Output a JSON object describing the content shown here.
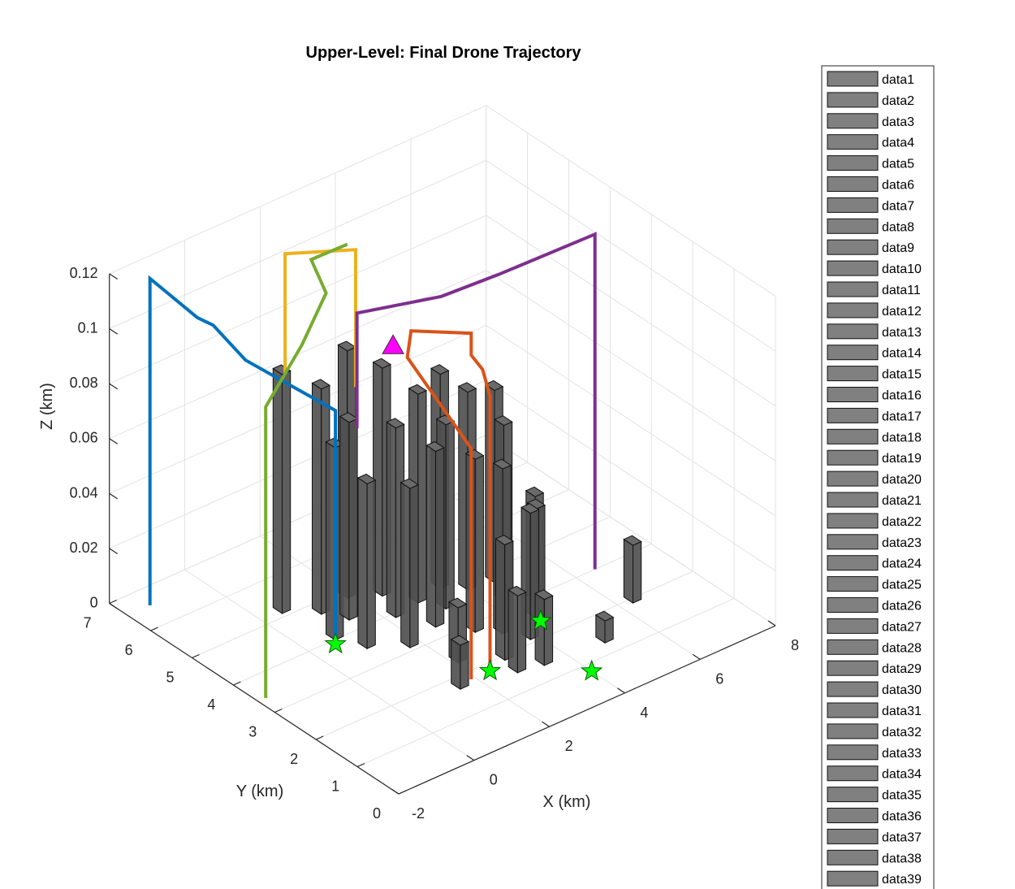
{
  "chart_data": {
    "type": "3d-bar-trajectory",
    "title": "Upper-Level: Final Drone Trajectory",
    "xlabel": "X (km)",
    "ylabel": "Y (km)",
    "zlabel": "Z (km)",
    "xlim": [
      -2,
      8
    ],
    "ylim": [
      0,
      7
    ],
    "zlim": [
      0,
      0.12
    ],
    "x_ticks": [
      "-2",
      "0",
      "2",
      "4",
      "6",
      "8"
    ],
    "y_ticks": [
      "0",
      "1",
      "2",
      "3",
      "4",
      "5",
      "6",
      "7"
    ],
    "z_ticks": [
      "0",
      "0.02",
      "0.04",
      "0.06",
      "0.08",
      "0.1",
      "0.12"
    ],
    "grid": true,
    "legend_placement": "right",
    "building_color": "#505050",
    "buildings": [
      {
        "x": 0.6,
        "y": 5.2,
        "h": 0.087
      },
      {
        "x": 1.2,
        "y": 4.8,
        "h": 0.082
      },
      {
        "x": 0.8,
        "y": 4.1,
        "h": 0.07
      },
      {
        "x": 1.5,
        "y": 4.4,
        "h": 0.072
      },
      {
        "x": 2.0,
        "y": 4.9,
        "h": 0.09
      },
      {
        "x": 1.1,
        "y": 3.6,
        "h": 0.06
      },
      {
        "x": 2.3,
        "y": 4.0,
        "h": 0.069
      },
      {
        "x": 2.6,
        "y": 4.6,
        "h": 0.083
      },
      {
        "x": 1.8,
        "y": 3.2,
        "h": 0.058
      },
      {
        "x": 3.0,
        "y": 4.1,
        "h": 0.076
      },
      {
        "x": 2.7,
        "y": 3.4,
        "h": 0.064
      },
      {
        "x": 3.3,
        "y": 3.7,
        "h": 0.067
      },
      {
        "x": 3.7,
        "y": 4.2,
        "h": 0.078
      },
      {
        "x": 3.2,
        "y": 2.9,
        "h": 0.063
      },
      {
        "x": 4.1,
        "y": 3.9,
        "h": 0.072
      },
      {
        "x": 3.6,
        "y": 2.6,
        "h": 0.06
      },
      {
        "x": 4.4,
        "y": 3.3,
        "h": 0.064
      },
      {
        "x": 4.7,
        "y": 3.8,
        "h": 0.07
      },
      {
        "x": 2.2,
        "y": 2.4,
        "h": 0.02
      },
      {
        "x": 3.0,
        "y": 2.0,
        "h": 0.042
      },
      {
        "x": 3.9,
        "y": 2.2,
        "h": 0.046
      },
      {
        "x": 4.5,
        "y": 2.6,
        "h": 0.04
      },
      {
        "x": 4.9,
        "y": 3.0,
        "h": 0.038
      },
      {
        "x": 5.0,
        "y": 1.4,
        "h": 0.008
      },
      {
        "x": 6.4,
        "y": 2.0,
        "h": 0.021
      },
      {
        "x": 1.6,
        "y": 1.8,
        "h": 0.016
      },
      {
        "x": 2.9,
        "y": 1.6,
        "h": 0.028
      },
      {
        "x": 3.5,
        "y": 1.5,
        "h": 0.024
      }
    ],
    "trajectories": [
      {
        "color": "#0072BD",
        "points": [
          [
            0.6,
            3.9,
            0
          ],
          [
            0.6,
            3.9,
            0.085
          ],
          [
            -0.8,
            4.8,
            0.103
          ],
          [
            -1.0,
            5.4,
            0.111
          ],
          [
            -1.2,
            5.6,
            0.113
          ],
          [
            -1.8,
            6.2,
            0.125
          ],
          [
            -1.8,
            6.2,
            0.006
          ]
        ]
      },
      {
        "color": "#EDB120",
        "points": [
          [
            3.0,
            5.6,
            0.062
          ],
          [
            3.0,
            5.6,
            0.112
          ],
          [
            0.8,
            5.3,
            0.127
          ],
          [
            0.8,
            5.3,
            0.083
          ]
        ]
      },
      {
        "color": "#77AC30",
        "points": [
          [
            3.0,
            5.8,
            0.112
          ],
          [
            1.6,
            5.4,
            0.119
          ],
          [
            0.9,
            4.4,
            0.121
          ],
          [
            -0.4,
            3.8,
            0.116
          ],
          [
            -1.8,
            3.4,
            0.106
          ],
          [
            -1.8,
            3.4,
            0.0
          ]
        ]
      },
      {
        "color": "#D95319",
        "points": [
          [
            2.4,
            1.8,
            0
          ],
          [
            2.4,
            1.8,
            0.1
          ],
          [
            2.2,
            1.8,
            0.111
          ],
          [
            1.9,
            1.8,
            0.118
          ],
          [
            1.9,
            1.8,
            0.126
          ],
          [
            1.4,
            2.8,
            0.12
          ],
          [
            1.3,
            2.8,
            0.111
          ],
          [
            1.9,
            1.8,
            0.084
          ],
          [
            1.9,
            1.8,
            0.0
          ]
        ]
      },
      {
        "color": "#7E2F8E",
        "points": [
          [
            6.5,
            3.0,
            0.0
          ],
          [
            6.5,
            3.0,
            0.122
          ],
          [
            4.6,
            3.6,
            0.113
          ],
          [
            3.3,
            3.8,
            0.111
          ],
          [
            1.5,
            4.2,
            0.112
          ],
          [
            1.5,
            4.2,
            0.07
          ]
        ]
      }
    ],
    "start_marker": {
      "x": 1.8,
      "y": 3.6,
      "z": 0.104,
      "color": "#FF00FF"
    },
    "goal_markers": [
      {
        "x": 0.6,
        "y": 3.9,
        "z": 0
      },
      {
        "x": 2.4,
        "y": 1.8,
        "z": 0
      },
      {
        "x": 4.0,
        "y": 0.8,
        "z": 0
      },
      {
        "x": 4.4,
        "y": 2.4,
        "z": 0
      }
    ],
    "goal_color": "#00FF00",
    "legend_entries": [
      "data1",
      "data2",
      "data3",
      "data4",
      "data5",
      "data6",
      "data7",
      "data8",
      "data9",
      "data10",
      "data11",
      "data12",
      "data13",
      "data14",
      "data15",
      "data16",
      "data17",
      "data18",
      "data19",
      "data20",
      "data21",
      "data22",
      "data23",
      "data24",
      "data25",
      "data26",
      "data27",
      "data28",
      "data29",
      "data30",
      "data31",
      "data32",
      "data33",
      "data34",
      "data35",
      "data36",
      "data37",
      "data38",
      "data39"
    ],
    "legend_swatch_color": "#808080"
  }
}
